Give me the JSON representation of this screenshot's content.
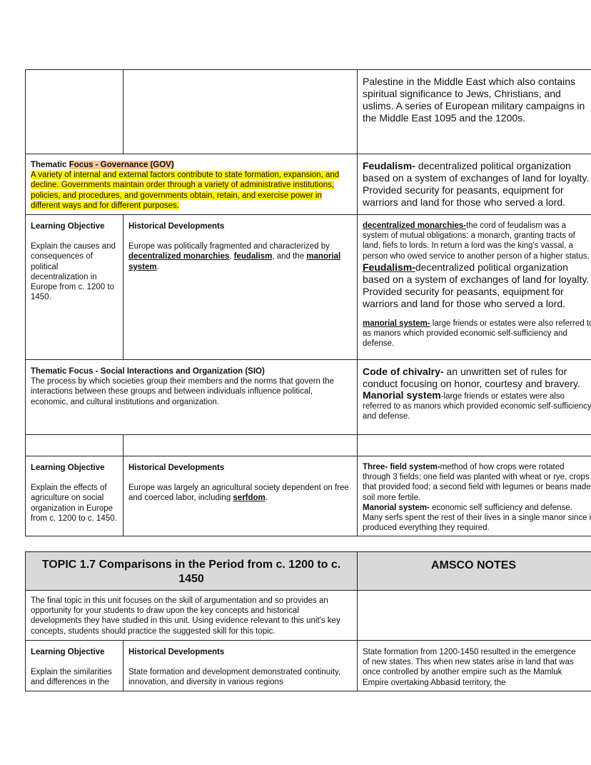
{
  "table1": {
    "row1": {
      "right": "Palestine in the Middle East which also contains spiritual significance to Jews, Christians, and uslims. A series of European military campaigns in the Middle East 1095 and the 1200s."
    },
    "gov": {
      "title_prefix": "Thematic ",
      "title_highlight": "Focus - Governance (GOV)",
      "body": "A variety of internal and external factors contribute to state formation, expansion, and decline. Governments maintain order through a variety of administrative institutions, policies, and procedures, and governments obtain, retain, and exercise power in different ways and for different purposes.",
      "note_term": "Feudalism-",
      "note_text": " decentralized political organization based on a system of exchanges of land for loyalty. Provided security for peasants, equipment for warriors and land for those who served a lord."
    },
    "lo1": {
      "lo_header": "Learning Objective",
      "lo_text": "Explain the causes and consequences of political decentralization in Europe from c. 1200 to 1450.",
      "hd_header": "Historical Developments",
      "hd_text_1": "Europe was politically fragmented and characterized by ",
      "hd_term_1": "decentralized monarchies",
      "hd_sep_1": ", ",
      "hd_term_2": "feudalism",
      "hd_sep_2": ", and the ",
      "hd_term_3": "manorial system",
      "hd_end": ".",
      "note1_term": "decentralized monarchies-",
      "note1_text": "the cord of feudalism was a system of mutual obligations: a monarch, granting tracts of land, fiefs to lords. In return a lord was the king's vassal, a person who owed service to another person of a higher status.",
      "note2_term": "Feudalism-",
      "note2_text": "decentralized political organization based on a system of exchanges of land for loyalty. Provided security for peasants, equipment for warriors and land for those who served a lord.",
      "note3_term": "manorial system-",
      "note3_text": " large friends or estates were also referred to as manors which provided economic self-sufficiency and defense."
    },
    "sio": {
      "title": "Thematic Focus - Social Interactions and Organization (SIO)",
      "body": "The process by which societies group their members and the norms that govern the interactions between these groups and between individuals influence political, economic, and cultural institutions and organization.",
      "note1_term": "Code of chivalry-",
      "note1_text": " an unwritten set of rules for conduct focusing on honor, courtesy and bravery.",
      "note2_term": "Manorial system",
      "note2_text": "-large friends or estates were also referred to as manors which provided economic self-sufficiency and defense."
    },
    "lo2": {
      "lo_header": "Learning Objective",
      "lo_text": "Explain the effects of agriculture on social organization in Europe from c. 1200 to c. 1450.",
      "hd_header": "Historical Developments",
      "hd_text": "Europe was largely an agricultural society dependent on free and coerced labor, including ",
      "hd_term": "serfdom",
      "hd_end": ".",
      "note1_term": "Three- field system-",
      "note1_text": "method of how crops were rotated through 3 fields; one field was planted with wheat or rye, crops that provided food; a second field with legumes or beans made soil more fertile.",
      "note2_term": "Manorial system-",
      "note2_text": " economic self sufficiency and defense. Many serfs spent the rest of their lives in a single manor since it produced everything they required."
    }
  },
  "table2": {
    "topic_title": "TOPIC 1.7 Comparisons in the Period from c. 1200 to c. 1450",
    "notes_title": "AMSCO NOTES",
    "intro": "The final topic in this unit focuses on the skill of argumentation and so provides an opportunity for your students to draw upon the key concepts and historical developments they have studied in this unit. Using evidence relevant to this unit's key concepts, students should practice the suggested skill for this topic.",
    "lo_header": "Learning Objective",
    "lo_text": "Explain the similarities and differences in the",
    "hd_header": "Historical Developments",
    "hd_text": "State formation and development demonstrated continuity, innovation, and diversity in various regions",
    "note": "State formation from 1200-1450 resulted in the emergence of new states. This when new states arise in land that was once controlled by another empire such as the Mamluk Empire overtaking Abbasid territory, the"
  }
}
